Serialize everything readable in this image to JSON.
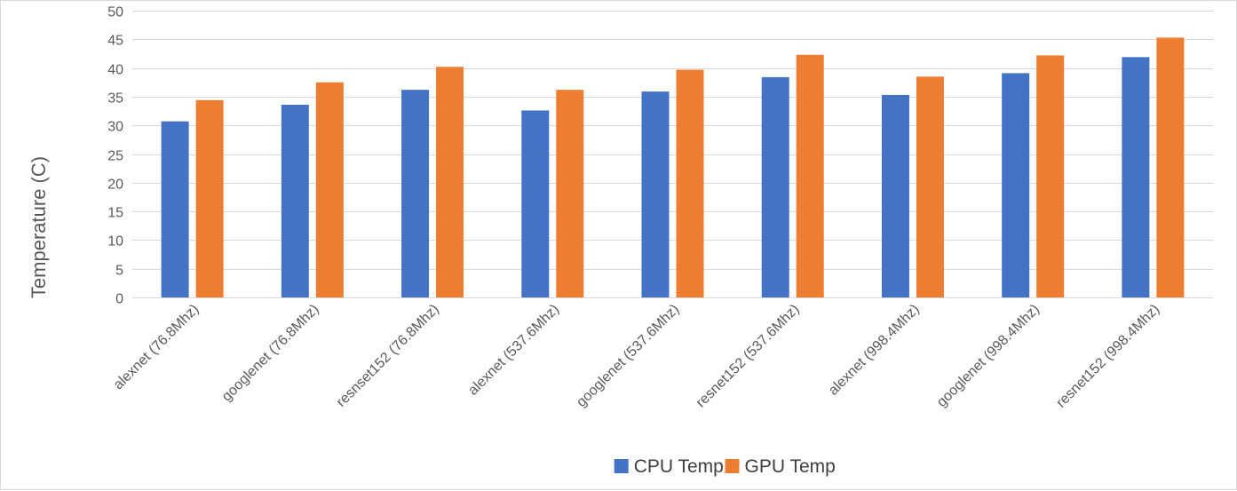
{
  "chart_data": {
    "type": "bar",
    "title": "",
    "xlabel": "",
    "ylabel": "Temperature (C)",
    "ylim": [
      0,
      50
    ],
    "yticks": [
      0,
      5,
      10,
      15,
      20,
      25,
      30,
      35,
      40,
      45,
      50
    ],
    "grid": true,
    "legend_position": "bottom",
    "categories": [
      "alexnet (76.8Mhz)",
      "googlenet (76.8Mhz)",
      "resnset152 (76.8Mhz)",
      "alexnet (537.6Mhz)",
      "googlenet (537.6Mhz)",
      "resnet152 (537.6Mhz)",
      "alexnet (998.4Mhz)",
      "googlenet (998.4Mhz)",
      "resnet152 (998.4Mhz)"
    ],
    "series": [
      {
        "name": "CPU Temp",
        "color": "#4472c4",
        "values": [
          30.7,
          33.6,
          36.2,
          32.6,
          35.9,
          38.4,
          35.3,
          39.1,
          41.9
        ]
      },
      {
        "name": "GPU Temp",
        "color": "#ed7d31",
        "values": [
          34.4,
          37.5,
          40.2,
          36.2,
          39.7,
          42.3,
          38.5,
          42.2,
          45.3
        ]
      }
    ]
  }
}
